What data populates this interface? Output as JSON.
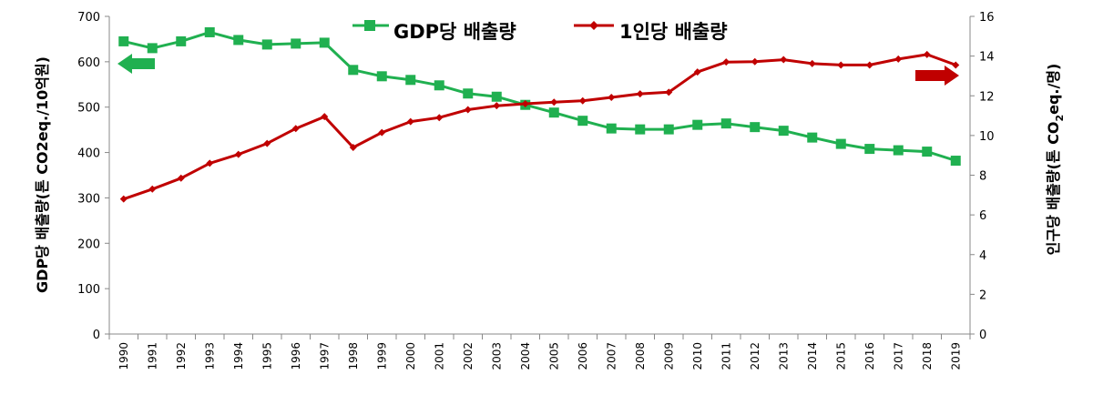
{
  "chart_data": {
    "type": "line",
    "title": "",
    "x": [
      1990,
      1991,
      1992,
      1993,
      1994,
      1995,
      1996,
      1997,
      1998,
      1999,
      2000,
      2001,
      2002,
      2003,
      2004,
      2005,
      2006,
      2007,
      2008,
      2009,
      2010,
      2011,
      2012,
      2013,
      2014,
      2015,
      2016,
      2017,
      2018,
      2019
    ],
    "x_tick_labels": [
      "1990",
      "1991",
      "1992",
      "1993",
      "1994",
      "1995",
      "1996",
      "1997",
      "1998",
      "1999",
      "2000",
      "2001",
      "2002",
      "2003",
      "2004",
      "2005",
      "2006",
      "2007",
      "2008",
      "2009",
      "2010",
      "2011",
      "2012",
      "2013",
      "2014",
      "2015",
      "2016",
      "2017",
      "2018",
      "2019"
    ],
    "y_left": {
      "label": "GDP당 배출량(톤 CO2eq./10억원)",
      "lim": [
        0,
        700
      ],
      "ticks": [
        "0",
        "100",
        "200",
        "300",
        "400",
        "500",
        "600",
        "700"
      ]
    },
    "y_right": {
      "label_pre": "인구당 배출량(톤 CO",
      "label_sub": "2",
      "label_post": "eq./명)",
      "lim": [
        0,
        16
      ],
      "ticks": [
        "0",
        "2",
        "4",
        "6",
        "8",
        "10",
        "12",
        "14",
        "16"
      ]
    },
    "series": [
      {
        "name": "GDP당 배출량",
        "axis": "left",
        "color": "#20b050",
        "marker": "square",
        "values": [
          645,
          630,
          645,
          665,
          648,
          638,
          640,
          642,
          582,
          568,
          560,
          548,
          530,
          523,
          505,
          488,
          470,
          453,
          451,
          451,
          461,
          464,
          456,
          448,
          433,
          419,
          408,
          405,
          402,
          382
        ]
      },
      {
        "name": "1인당 배출량",
        "axis": "right",
        "color": "#c00000",
        "marker": "diamond",
        "values": [
          6.8,
          7.3,
          7.85,
          8.6,
          9.05,
          9.6,
          10.35,
          10.95,
          9.4,
          10.15,
          10.7,
          10.9,
          11.3,
          11.5,
          11.6,
          11.68,
          11.75,
          11.92,
          12.1,
          12.18,
          13.2,
          13.7,
          13.72,
          13.82,
          13.62,
          13.55,
          13.55,
          13.85,
          14.08,
          13.55
        ]
      }
    ],
    "legend_position": "top-center",
    "axis_indicators": {
      "left_arrow_color": "#20b050",
      "right_arrow_color": "#c00000"
    },
    "grid": false
  }
}
